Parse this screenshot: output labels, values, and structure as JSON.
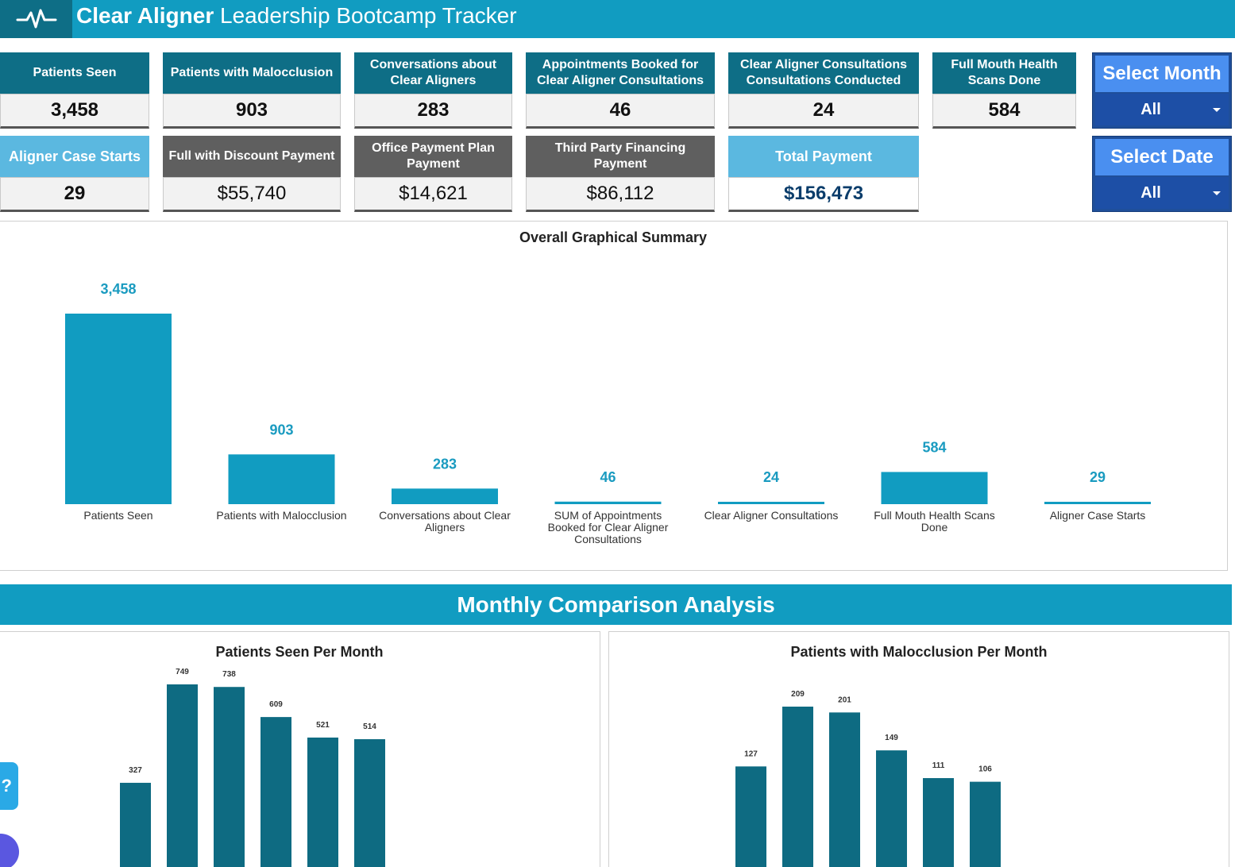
{
  "header": {
    "title_bold": "Clear Aligner",
    "title_rest": " Leadership Bootcamp Tracker",
    "logo_icon": "heartbeat-icon"
  },
  "kpis": {
    "patients_seen": {
      "label": "Patients Seen",
      "value": "3,458"
    },
    "malocclusion": {
      "label": "Patients with Malocclusion",
      "value": "903"
    },
    "conversations": {
      "label": "Conversations about Clear Aligners",
      "value": "283"
    },
    "appointments": {
      "label": "Appointments Booked for Clear Aligner Consultations",
      "value": "46"
    },
    "consultations": {
      "label": "Clear Aligner Consultations Consultations Conducted",
      "value": "24"
    },
    "scans": {
      "label": "Full Mouth Health Scans Done",
      "value": "584"
    },
    "case_starts": {
      "label": "Aligner Case Starts",
      "value": "29"
    },
    "full_discount": {
      "label": "Full with Discount Payment",
      "value": "$55,740"
    },
    "office_plan": {
      "label": "Office Payment Plan Payment",
      "value": "$14,621"
    },
    "third_party": {
      "label": "Third Party Financing Payment",
      "value": "$86,112"
    },
    "total_payment": {
      "label": "Total Payment",
      "value": "$156,473"
    }
  },
  "selectors": {
    "month": {
      "label": "Select Month",
      "value": "All"
    },
    "date": {
      "label": "Select Date",
      "value": "All"
    }
  },
  "overall_chart": {
    "title": "Overall Graphical Summary"
  },
  "monthly": {
    "banner": "Monthly Comparison Analysis"
  },
  "colors": {
    "header": "#119cc1",
    "teal_dark": "#0e6e86",
    "bar_overall": "#119cc1",
    "bar_monthly": "#0e6b82",
    "label_value": "#1a9bc0"
  },
  "chart_data": [
    {
      "type": "bar",
      "title": "Overall Graphical Summary",
      "categories": [
        [
          "Patients Seen"
        ],
        [
          "Patients with Malocclusion"
        ],
        [
          "Conversations about Clear",
          "Aligners"
        ],
        [
          "SUM of Appointments",
          "Booked for Clear Aligner",
          "Consultations"
        ],
        [
          "Clear Aligner Consultations"
        ],
        [
          "Full Mouth Health Scans",
          "Done"
        ],
        [
          "Aligner Case Starts"
        ]
      ],
      "values": [
        3458,
        903,
        283,
        46,
        24,
        584,
        29
      ],
      "value_labels": [
        "3,458",
        "903",
        "283",
        "46",
        "24",
        "584",
        "29"
      ],
      "ylim": [
        0,
        3458
      ]
    },
    {
      "type": "bar",
      "title": "Patients Seen Per Month",
      "values": [
        327,
        749,
        738,
        609,
        521,
        514
      ],
      "value_labels": [
        "327",
        "749",
        "738",
        "609",
        "521",
        "514"
      ],
      "ylim": [
        0,
        749
      ]
    },
    {
      "type": "bar",
      "title": "Patients with Malocclusion Per Month",
      "values": [
        127,
        209,
        201,
        149,
        111,
        106
      ],
      "value_labels": [
        "127",
        "209",
        "201",
        "149",
        "111",
        "106"
      ],
      "ylim": [
        0,
        209
      ]
    }
  ]
}
